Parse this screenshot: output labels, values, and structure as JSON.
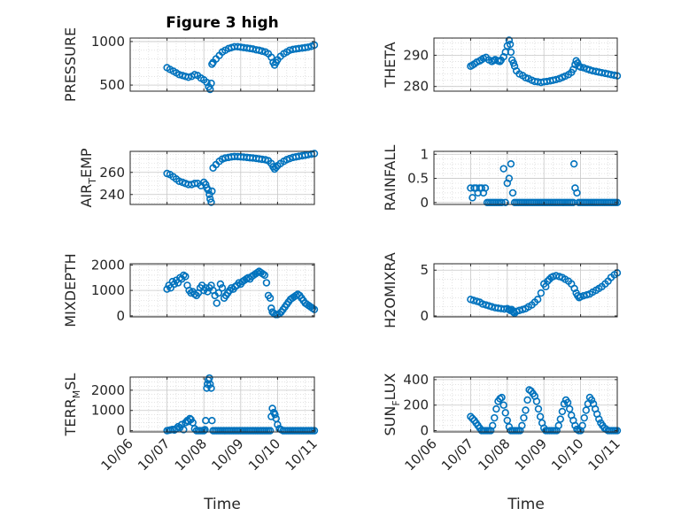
{
  "figure_title": "Figure 3 high",
  "marker_color": "#0072BD",
  "chart_data": [
    {
      "type": "scatter",
      "ylabel": "PRESSURE",
      "yticks": [
        "500",
        "1000"
      ],
      "yticks_v": [
        500,
        1000
      ],
      "ylim": [
        430,
        1040
      ],
      "x": [
        7.0,
        7.08,
        7.17,
        7.25,
        7.33,
        7.42,
        7.5,
        7.58,
        7.67,
        7.75,
        7.83,
        7.92,
        8.0,
        8.08,
        8.13,
        8.17,
        8.2,
        8.22,
        8.25,
        8.33,
        8.42,
        8.5,
        8.58,
        8.67,
        8.75,
        8.83,
        8.92,
        9.0,
        9.08,
        9.17,
        9.25,
        9.33,
        9.42,
        9.5,
        9.58,
        9.67,
        9.75,
        9.83,
        9.88,
        9.92,
        9.96,
        10.0,
        10.08,
        10.17,
        10.25,
        10.33,
        10.42,
        10.5,
        10.58,
        10.67,
        10.75,
        10.83,
        10.92,
        11.0
      ],
      "y": [
        700,
        680,
        660,
        640,
        620,
        610,
        600,
        590,
        600,
        620,
        610,
        580,
        560,
        530,
        480,
        450,
        520,
        740,
        760,
        800,
        840,
        880,
        900,
        920,
        930,
        940,
        940,
        935,
        930,
        925,
        920,
        915,
        905,
        900,
        890,
        880,
        860,
        820,
        760,
        730,
        760,
        790,
        830,
        860,
        880,
        900,
        910,
        915,
        920,
        925,
        930,
        935,
        945,
        960
      ]
    },
    {
      "type": "scatter",
      "ylabel": "THETA",
      "yticks": [
        "280",
        "290"
      ],
      "yticks_v": [
        280,
        290
      ],
      "ylim": [
        278.5,
        295.5
      ],
      "x": [
        7.0,
        7.05,
        7.1,
        7.17,
        7.25,
        7.3,
        7.35,
        7.42,
        7.5,
        7.58,
        7.63,
        7.67,
        7.75,
        7.8,
        7.83,
        7.9,
        7.95,
        8.0,
        8.05,
        8.08,
        8.1,
        8.13,
        8.17,
        8.2,
        8.25,
        8.33,
        8.42,
        8.5,
        8.58,
        8.67,
        8.75,
        8.83,
        8.92,
        9.0,
        9.08,
        9.17,
        9.25,
        9.33,
        9.42,
        9.5,
        9.58,
        9.67,
        9.75,
        9.8,
        9.85,
        9.88,
        9.92,
        9.96,
        10.0,
        10.08,
        10.17,
        10.25,
        10.33,
        10.42,
        10.5,
        10.58,
        10.67,
        10.75,
        10.83,
        10.92,
        11.0
      ],
      "y": [
        286.5,
        286.8,
        287.2,
        287.8,
        288.2,
        288.6,
        289.0,
        289.3,
        288.5,
        288.0,
        288.3,
        288.6,
        288.2,
        288.0,
        288.4,
        289.5,
        291.0,
        293.0,
        294.8,
        293.5,
        291.0,
        288.5,
        287.5,
        286.5,
        285.0,
        284.0,
        283.5,
        282.8,
        282.5,
        282.0,
        281.6,
        281.5,
        281.3,
        281.5,
        281.6,
        281.8,
        282.0,
        282.2,
        282.5,
        282.9,
        283.3,
        283.8,
        284.5,
        285.5,
        287.0,
        288.2,
        287.5,
        286.5,
        286.2,
        286.0,
        285.6,
        285.3,
        285.0,
        284.8,
        284.6,
        284.4,
        284.2,
        284.0,
        283.8,
        283.6,
        283.4
      ]
    },
    {
      "type": "scatter",
      "ylabel": "AIR_TEMP",
      "yticks": [
        "240",
        "260"
      ],
      "yticks_v": [
        240,
        260
      ],
      "ylim": [
        231,
        279
      ],
      "x": [
        7.0,
        7.08,
        7.17,
        7.25,
        7.33,
        7.42,
        7.5,
        7.58,
        7.67,
        7.75,
        7.83,
        7.92,
        8.0,
        8.05,
        8.08,
        8.12,
        8.15,
        8.17,
        8.2,
        8.22,
        8.25,
        8.33,
        8.42,
        8.5,
        8.58,
        8.67,
        8.75,
        8.83,
        8.92,
        9.0,
        9.08,
        9.17,
        9.25,
        9.33,
        9.42,
        9.5,
        9.58,
        9.67,
        9.75,
        9.83,
        9.88,
        9.92,
        9.96,
        10.0,
        10.08,
        10.17,
        10.25,
        10.33,
        10.42,
        10.5,
        10.58,
        10.67,
        10.75,
        10.83,
        10.92,
        11.0
      ],
      "y": [
        259,
        258,
        256,
        254,
        252,
        251,
        250,
        249,
        249,
        250,
        250,
        248,
        251,
        249,
        246,
        244,
        240,
        236,
        233,
        243,
        264,
        267,
        270,
        272,
        273,
        273.5,
        274,
        274.3,
        274.2,
        274,
        273.8,
        273.5,
        273.2,
        273,
        272.6,
        272.2,
        271.8,
        271.4,
        270.5,
        268,
        265,
        263,
        264.5,
        266,
        268,
        270,
        271.5,
        272.5,
        273.5,
        274,
        274.5,
        275,
        275.5,
        276,
        276.5,
        277
      ]
    },
    {
      "type": "scatter",
      "ylabel": "RAINFALL",
      "yticks": [
        "0",
        "0.5",
        "1"
      ],
      "yticks_v": [
        0,
        0.5,
        1
      ],
      "ylim": [
        -0.04,
        1.06
      ],
      "x": [
        7.0,
        7.05,
        7.1,
        7.15,
        7.2,
        7.25,
        7.3,
        7.35,
        7.4,
        7.45,
        7.5,
        7.55,
        7.6,
        7.65,
        7.7,
        7.75,
        7.8,
        7.85,
        7.9,
        7.95,
        8.0,
        8.05,
        8.1,
        8.15,
        8.2,
        8.25,
        8.3,
        8.35,
        8.4,
        8.45,
        8.5,
        8.55,
        8.6,
        8.65,
        8.7,
        8.75,
        8.8,
        8.85,
        8.9,
        8.95,
        9.0,
        9.05,
        9.1,
        9.15,
        9.2,
        9.25,
        9.3,
        9.35,
        9.4,
        9.45,
        9.5,
        9.55,
        9.6,
        9.65,
        9.7,
        9.75,
        9.8,
        9.82,
        9.85,
        9.9,
        9.95,
        10.0,
        10.05,
        10.1,
        10.15,
        10.2,
        10.25,
        10.3,
        10.35,
        10.4,
        10.45,
        10.5,
        10.55,
        10.6,
        10.65,
        10.7,
        10.75,
        10.8,
        10.85,
        10.9,
        10.95,
        11.0
      ],
      "y": [
        0.3,
        0.1,
        0.3,
        0.3,
        0.2,
        0.3,
        0.3,
        0.2,
        0.3,
        0.0,
        0.0,
        0.0,
        0.0,
        0.0,
        0.0,
        0.0,
        0.0,
        0.0,
        0.7,
        0.0,
        0.4,
        0.5,
        0.8,
        0.2,
        0.0,
        0.0,
        0.0,
        0.0,
        0.0,
        0.0,
        0.0,
        0.0,
        0.0,
        0.0,
        0.0,
        0.0,
        0.0,
        0.0,
        0.0,
        0.0,
        0.0,
        0.0,
        0.0,
        0.0,
        0.0,
        0.0,
        0.0,
        0.0,
        0.0,
        0.0,
        0.0,
        0.0,
        0.0,
        0.0,
        0.0,
        0.0,
        0.0,
        0.8,
        0.3,
        0.2,
        0.0,
        0.0,
        0.0,
        0.0,
        0.0,
        0.0,
        0.0,
        0.0,
        0.0,
        0.0,
        0.0,
        0.0,
        0.0,
        0.0,
        0.0,
        0.0,
        0.0,
        0.0,
        0.0,
        0.0,
        0.0,
        0.0
      ]
    },
    {
      "type": "scatter",
      "ylabel": "MIXDEPTH",
      "yticks": [
        "0",
        "1000",
        "2000"
      ],
      "yticks_v": [
        0,
        1000,
        2000
      ],
      "ylim": [
        -40,
        2050
      ],
      "x": [
        7.0,
        7.05,
        7.1,
        7.15,
        7.2,
        7.25,
        7.3,
        7.35,
        7.4,
        7.45,
        7.5,
        7.55,
        7.6,
        7.65,
        7.7,
        7.75,
        7.8,
        7.85,
        7.9,
        7.95,
        8.0,
        8.05,
        8.1,
        8.15,
        8.2,
        8.25,
        8.3,
        8.35,
        8.4,
        8.45,
        8.5,
        8.55,
        8.6,
        8.65,
        8.7,
        8.75,
        8.8,
        8.85,
        8.9,
        8.95,
        9.0,
        9.05,
        9.1,
        9.15,
        9.2,
        9.25,
        9.3,
        9.35,
        9.4,
        9.45,
        9.5,
        9.55,
        9.6,
        9.65,
        9.7,
        9.75,
        9.8,
        9.83,
        9.86,
        9.9,
        9.95,
        10.0,
        10.05,
        10.1,
        10.15,
        10.2,
        10.25,
        10.3,
        10.35,
        10.4,
        10.45,
        10.5,
        10.55,
        10.6,
        10.65,
        10.7,
        10.75,
        10.8,
        10.85,
        10.9,
        10.95,
        11.0
      ],
      "y": [
        1050,
        1200,
        1100,
        1350,
        1250,
        1400,
        1300,
        1500,
        1450,
        1600,
        1550,
        1200,
        1000,
        900,
        950,
        850,
        800,
        900,
        1100,
        1200,
        1000,
        1100,
        950,
        1100,
        1200,
        1000,
        800,
        500,
        900,
        1250,
        1100,
        700,
        800,
        900,
        1000,
        1100,
        1050,
        1150,
        1200,
        1300,
        1250,
        1350,
        1400,
        1450,
        1500,
        1450,
        1550,
        1600,
        1650,
        1700,
        1750,
        1700,
        1650,
        1600,
        1300,
        800,
        700,
        300,
        150,
        100,
        50,
        50,
        80,
        150,
        250,
        350,
        450,
        550,
        650,
        700,
        750,
        800,
        850,
        800,
        700,
        600,
        500,
        450,
        400,
        350,
        300,
        250
      ]
    },
    {
      "type": "scatter",
      "ylabel": "H2OMIXRA",
      "yticks": [
        "0",
        "5"
      ],
      "yticks_v": [
        0,
        5
      ],
      "ylim": [
        -0.1,
        5.7
      ],
      "x": [
        7.0,
        7.08,
        7.17,
        7.25,
        7.33,
        7.42,
        7.5,
        7.58,
        7.67,
        7.75,
        7.83,
        7.92,
        8.0,
        8.05,
        8.08,
        8.12,
        8.15,
        8.17,
        8.2,
        8.25,
        8.33,
        8.42,
        8.5,
        8.58,
        8.67,
        8.75,
        8.83,
        8.92,
        9.0,
        9.05,
        9.1,
        9.15,
        9.2,
        9.25,
        9.33,
        9.42,
        9.5,
        9.58,
        9.67,
        9.75,
        9.83,
        9.88,
        9.92,
        9.96,
        10.0,
        10.08,
        10.17,
        10.25,
        10.33,
        10.42,
        10.5,
        10.58,
        10.67,
        10.75,
        10.83,
        10.92,
        11.0
      ],
      "y": [
        1.8,
        1.7,
        1.6,
        1.5,
        1.3,
        1.2,
        1.1,
        1.0,
        0.9,
        0.85,
        0.8,
        0.75,
        0.8,
        0.7,
        0.6,
        0.7,
        0.5,
        0.4,
        0.3,
        0.5,
        0.6,
        0.7,
        0.8,
        1.0,
        1.2,
        1.5,
        1.8,
        2.5,
        3.5,
        3.2,
        3.8,
        4.0,
        4.2,
        4.3,
        4.4,
        4.3,
        4.2,
        4.0,
        3.8,
        3.5,
        3.0,
        2.5,
        2.2,
        2.0,
        2.1,
        2.2,
        2.3,
        2.4,
        2.6,
        2.8,
        3.0,
        3.2,
        3.5,
        3.8,
        4.2,
        4.5,
        4.7
      ]
    },
    {
      "type": "scatter",
      "ylabel": "TERR_MSL",
      "yticks": [
        "0",
        "1000",
        "2000"
      ],
      "yticks_v": [
        0,
        1000,
        2000
      ],
      "ylim": [
        -60,
        2650
      ],
      "x": [
        7.0,
        7.05,
        7.1,
        7.15,
        7.2,
        7.25,
        7.3,
        7.35,
        7.4,
        7.45,
        7.5,
        7.55,
        7.58,
        7.62,
        7.65,
        7.7,
        7.75,
        7.8,
        7.85,
        7.9,
        7.95,
        8.0,
        8.03,
        8.05,
        8.08,
        8.1,
        8.12,
        8.15,
        8.17,
        8.2,
        8.22,
        8.25,
        8.3,
        8.35,
        8.4,
        8.45,
        8.5,
        8.55,
        8.6,
        8.65,
        8.7,
        8.75,
        8.8,
        8.85,
        8.9,
        8.95,
        9.0,
        9.05,
        9.1,
        9.15,
        9.2,
        9.25,
        9.3,
        9.35,
        9.4,
        9.45,
        9.5,
        9.55,
        9.6,
        9.65,
        9.7,
        9.75,
        9.8,
        9.83,
        9.86,
        9.9,
        9.93,
        9.96,
        10.0,
        10.05,
        10.1,
        10.15,
        10.2,
        10.25,
        10.3,
        10.35,
        10.4,
        10.45,
        10.5,
        10.55,
        10.6,
        10.65,
        10.7,
        10.75,
        10.8,
        10.85,
        10.9,
        10.95,
        11.0
      ],
      "y": [
        0,
        20,
        40,
        60,
        30,
        100,
        200,
        150,
        300,
        50,
        400,
        500,
        450,
        600,
        550,
        400,
        100,
        0,
        0,
        0,
        0,
        0,
        50,
        500,
        2100,
        2300,
        2500,
        2600,
        2300,
        2100,
        500,
        0,
        0,
        0,
        0,
        0,
        0,
        0,
        0,
        0,
        0,
        0,
        0,
        0,
        0,
        0,
        0,
        0,
        0,
        0,
        0,
        0,
        0,
        0,
        0,
        0,
        0,
        0,
        0,
        0,
        0,
        0,
        0,
        700,
        1100,
        900,
        800,
        600,
        300,
        100,
        50,
        0,
        0,
        0,
        0,
        0,
        0,
        0,
        0,
        0,
        0,
        0,
        0,
        0,
        0,
        0,
        0,
        0,
        0
      ]
    },
    {
      "type": "scatter",
      "ylabel": "SUN_FLUX",
      "yticks": [
        "0",
        "200",
        "400"
      ],
      "yticks_v": [
        0,
        200,
        400
      ],
      "ylim": [
        -10,
        420
      ],
      "x": [
        7.0,
        7.05,
        7.1,
        7.15,
        7.2,
        7.25,
        7.3,
        7.35,
        7.4,
        7.45,
        7.5,
        7.55,
        7.6,
        7.65,
        7.7,
        7.75,
        7.8,
        7.85,
        7.9,
        7.95,
        8.0,
        8.05,
        8.1,
        8.15,
        8.2,
        8.25,
        8.3,
        8.35,
        8.4,
        8.45,
        8.5,
        8.55,
        8.6,
        8.65,
        8.7,
        8.75,
        8.8,
        8.85,
        8.9,
        8.95,
        9.0,
        9.05,
        9.1,
        9.15,
        9.2,
        9.25,
        9.3,
        9.35,
        9.4,
        9.45,
        9.5,
        9.55,
        9.6,
        9.65,
        9.7,
        9.75,
        9.8,
        9.85,
        9.9,
        9.95,
        10.0,
        10.05,
        10.1,
        10.15,
        10.2,
        10.25,
        10.3,
        10.35,
        10.4,
        10.45,
        10.5,
        10.55,
        10.6,
        10.65,
        10.7,
        10.75,
        10.8,
        10.85,
        10.9,
        10.95,
        11.0
      ],
      "y": [
        110,
        95,
        80,
        60,
        40,
        20,
        0,
        0,
        0,
        0,
        0,
        0,
        40,
        100,
        170,
        230,
        250,
        260,
        200,
        140,
        80,
        30,
        0,
        0,
        0,
        0,
        0,
        0,
        40,
        100,
        160,
        240,
        320,
        310,
        290,
        270,
        230,
        170,
        110,
        60,
        20,
        0,
        0,
        0,
        0,
        0,
        0,
        0,
        40,
        90,
        150,
        210,
        240,
        220,
        170,
        120,
        80,
        40,
        10,
        0,
        0,
        40,
        100,
        160,
        210,
        260,
        240,
        210,
        170,
        130,
        90,
        60,
        40,
        20,
        10,
        0,
        0,
        0,
        0,
        0,
        0
      ]
    }
  ],
  "x_axis": {
    "xlim": [
      6,
      11
    ],
    "tick_values": [
      6,
      7,
      8,
      9,
      10,
      11
    ],
    "tick_labels": [
      "10/06",
      "10/07",
      "10/08",
      "10/09",
      "10/10",
      "10/11"
    ],
    "xlabel_left": "Time",
    "xlabel_right": "Time"
  }
}
